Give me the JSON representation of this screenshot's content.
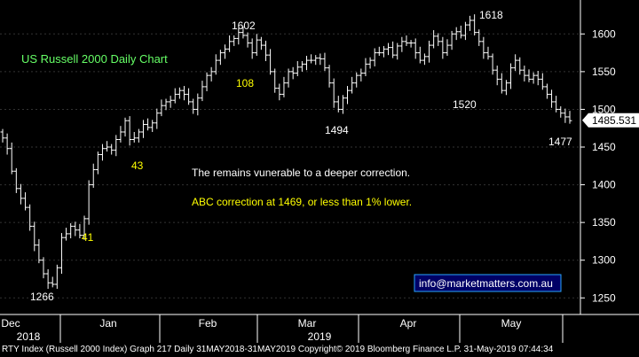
{
  "chart_data": {
    "type": "ohlc",
    "title": "US Russell 2000 Daily Chart",
    "ylim": [
      1228,
      1645
    ],
    "y_ticks": [
      1250,
      1300,
      1350,
      1400,
      1450,
      1500,
      1550,
      1600
    ],
    "last_price": "1485.531",
    "x_labels": [
      {
        "label": "Dec",
        "period": "2018-12"
      },
      {
        "label": "Jan",
        "period": "2019-01"
      },
      {
        "label": "Feb",
        "period": "2019-02"
      },
      {
        "label": "Mar",
        "period": "2019-03"
      },
      {
        "label": "Apr",
        "period": "2019-04"
      },
      {
        "label": "May",
        "period": "2019-05"
      }
    ],
    "year_labels": [
      {
        "label": "2018",
        "period": "2018-12"
      },
      {
        "label": "2019",
        "period": "2019-03"
      }
    ],
    "series": [
      {
        "values": [
          1462,
          1448,
          1418,
          1395,
          1382,
          1370,
          1345,
          1320,
          1300,
          1282,
          1270,
          1268,
          1290,
          1330,
          1335,
          1345,
          1340,
          1333,
          1355,
          1400,
          1420,
          1440,
          1448,
          1450,
          1446,
          1460,
          1470,
          1485,
          1460,
          1462,
          1470,
          1480,
          1476,
          1482,
          1495,
          1505,
          1510,
          1512,
          1520,
          1525,
          1520,
          1510,
          1500,
          1515,
          1530,
          1545,
          1550,
          1565,
          1575,
          1580,
          1590,
          1594,
          1602,
          1598,
          1588,
          1575,
          1592,
          1585,
          1572,
          1550,
          1528,
          1520,
          1535,
          1550,
          1548,
          1556,
          1560,
          1565,
          1565,
          1568,
          1567,
          1555,
          1535,
          1510,
          1500,
          1515,
          1525,
          1535,
          1545,
          1548,
          1560,
          1565,
          1575,
          1575,
          1580,
          1582,
          1572,
          1584,
          1590,
          1588,
          1588,
          1575,
          1565,
          1570,
          1585,
          1597,
          1590,
          1575,
          1585,
          1600,
          1603,
          1598,
          1612,
          1618,
          1602,
          1590,
          1575,
          1570,
          1552,
          1540,
          1525,
          1535,
          1555,
          1565,
          1552,
          1545,
          1540,
          1545,
          1540,
          1530,
          1520,
          1510,
          1500,
          1495,
          1490,
          1485
        ]
      }
    ],
    "annotations": [
      {
        "text": "1602",
        "style": "white"
      },
      {
        "text": "1618",
        "style": "white"
      },
      {
        "text": "108",
        "style": "yellow"
      },
      {
        "text": "1494",
        "style": "white"
      },
      {
        "text": "1520",
        "style": "white"
      },
      {
        "text": "1477",
        "style": "white"
      },
      {
        "text": "43",
        "style": "yellow"
      },
      {
        "text": "41",
        "style": "yellow"
      },
      {
        "text": "1266",
        "style": "white"
      },
      {
        "text": "The remains vunerable to a deeper correction.",
        "style": "white"
      },
      {
        "text": "ABC correction at 1469, or less than 1% lower.",
        "style": "yellow"
      }
    ],
    "watermark": "info@marketmatters.com.au"
  },
  "footer": "RTY Index (Russell 2000 Index) Graph 217  Daily 31MAY2018-31MAY2019 Copyright© 2019 Bloomberg Finance L.P. 31-May-2019 07:44:34",
  "colors": {
    "background": "#000000",
    "bars": "#ffffff",
    "title": "#66ff66",
    "annotation_yellow": "#ffff00",
    "grid": "#444444",
    "watermark_border": "#2aa6ff",
    "watermark_bg": "#000066",
    "last_price_box": "#ffffff"
  }
}
